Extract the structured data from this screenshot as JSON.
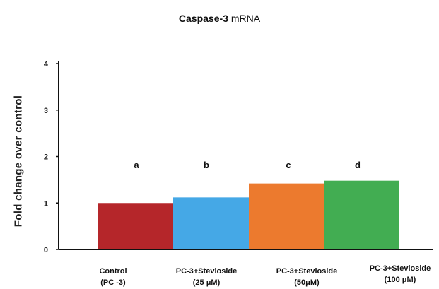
{
  "chart_data": {
    "type": "bar",
    "title": "Caspase-3 mRNA",
    "title_bold_part": "Caspase-3",
    "title_rest": " mRNA",
    "ylabel": "Fold change over control",
    "xlabel": "",
    "ylim": [
      0,
      4
    ],
    "yticks": [
      0,
      1,
      2,
      3,
      4
    ],
    "grid": false,
    "categories": [
      [
        "Control",
        "(PC -3)"
      ],
      [
        "PC-3+Stevioside",
        "(25 μM)"
      ],
      [
        "PC-3+Stevioside",
        "(50μM)"
      ],
      [
        "PC-3+Stevioside",
        "(100 μM)"
      ]
    ],
    "values": [
      1.0,
      1.12,
      1.42,
      1.48
    ],
    "significance_labels": [
      "a",
      "b",
      "c",
      "d"
    ],
    "colors": [
      "#b5262a",
      "#45a8e6",
      "#ec7a2e",
      "#42ad52"
    ]
  }
}
